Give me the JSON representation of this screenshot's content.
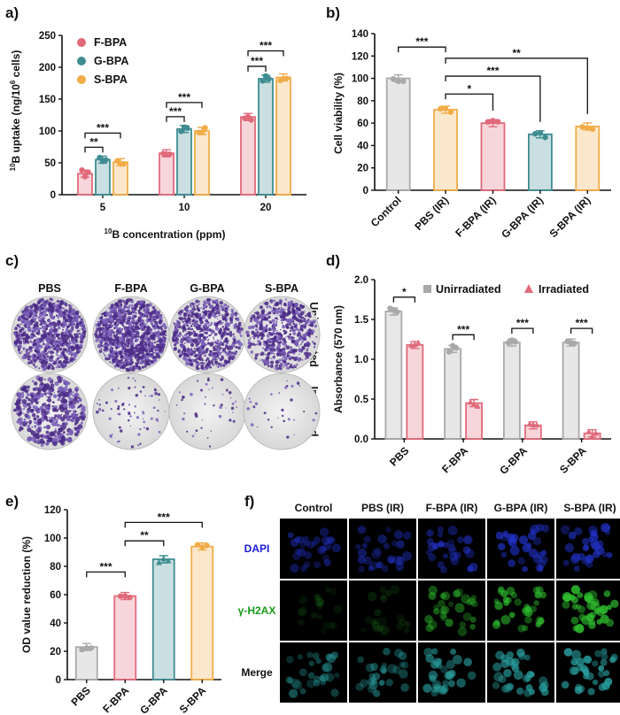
{
  "panels": {
    "a": "a)",
    "b": "b)",
    "c": "c)",
    "d": "d)",
    "e": "e)",
    "f": "f)"
  },
  "chart_data": [
    {
      "id": "a",
      "type": "bar",
      "categories": [
        "5",
        "10",
        "20"
      ],
      "series": [
        {
          "name": "F-BPA",
          "color": "#e06a7b",
          "values": [
            33,
            65,
            122
          ]
        },
        {
          "name": "G-BPA",
          "color": "#3f8d92",
          "values": [
            55,
            103,
            182
          ]
        },
        {
          "name": "S-BPA",
          "color": "#f1ac48",
          "values": [
            51,
            100,
            184
          ]
        }
      ],
      "xlabel_sup": "10",
      "xlabel": "B concentration (ppm)",
      "ylabel_sup": "10",
      "ylabel_mid": "B uptake (ng/10",
      "ylabel_sup2": "6",
      "ylabel_end": " cells)",
      "ylim": [
        0,
        250
      ],
      "yticks": [
        "0",
        "50",
        "100",
        "150",
        "200",
        "250"
      ],
      "legend": "top-left",
      "significance": [
        "**",
        "***",
        "***",
        "***",
        "***",
        "***"
      ]
    },
    {
      "id": "b",
      "type": "bar",
      "categories": [
        "Control",
        "PBS (IR)",
        "F-BPA (IR)",
        "G-BPA (IR)",
        "S-BPA (IR)"
      ],
      "values": [
        100,
        72,
        60,
        50,
        57
      ],
      "colors": [
        "#a9a9a9",
        "#f1ac48",
        "#e06a7b",
        "#3f8d92",
        "#f1ac48"
      ],
      "ylabel": "Cell viability (%)",
      "ylim": [
        0,
        140
      ],
      "yticks": [
        "0",
        "20",
        "40",
        "60",
        "80",
        "100",
        "120",
        "140"
      ],
      "significance": [
        "***",
        "**",
        "***",
        "*"
      ]
    },
    {
      "id": "d",
      "type": "bar",
      "categories": [
        "PBS",
        "F-BPA",
        "G-BPA",
        "S-BPA"
      ],
      "series": [
        {
          "name": "Unirradiated",
          "color": "#a9a9a9",
          "values": [
            1.6,
            1.13,
            1.21,
            1.21
          ]
        },
        {
          "name": "Irradiated",
          "color": "#e06a7b",
          "values": [
            1.18,
            0.45,
            0.17,
            0.07
          ]
        }
      ],
      "ylabel": "Absorbance (570 nm)",
      "ylim": [
        0,
        2.0
      ],
      "yticks": [
        "0.0",
        "0.5",
        "1.0",
        "1.5",
        "2.0"
      ],
      "legend": "top",
      "significance": [
        "*",
        "***",
        "***",
        "***"
      ]
    },
    {
      "id": "e",
      "type": "bar",
      "categories": [
        "PBS",
        "F-BPA",
        "G-BPA",
        "S-BPA"
      ],
      "values": [
        23,
        59,
        85,
        94
      ],
      "colors": [
        "#a9a9a9",
        "#e06a7b",
        "#3f8d92",
        "#f1ac48"
      ],
      "ylabel": "OD value reduction (%)",
      "ylim": [
        0,
        120
      ],
      "yticks": [
        "0",
        "20",
        "40",
        "60",
        "80",
        "100",
        "120"
      ],
      "significance": [
        "***",
        "**",
        "***"
      ]
    }
  ],
  "panel_c": {
    "columns": [
      "PBS",
      "F-BPA",
      "G-BPA",
      "S-BPA"
    ],
    "rows": [
      "Unirradiated",
      "Irradiated"
    ]
  },
  "panel_f": {
    "columns": [
      "Control",
      "PBS (IR)",
      "F-BPA (IR)",
      "G-BPA (IR)",
      "S-BPA (IR)"
    ],
    "rows": [
      "DAPI",
      "γ-H2AX",
      "Merge"
    ],
    "row_colors": [
      "#1a1adb",
      "#1a9a1a",
      "#111111"
    ]
  }
}
